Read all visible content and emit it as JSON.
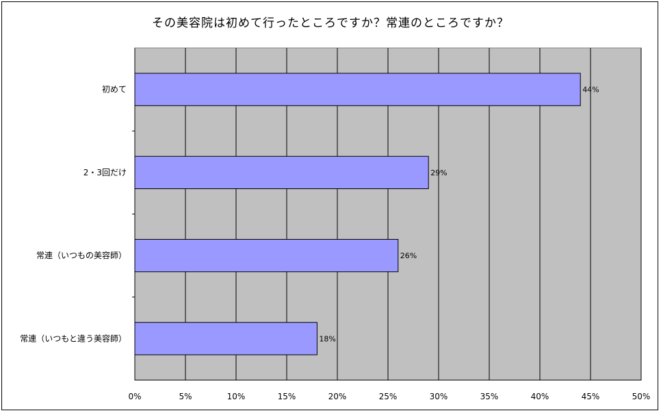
{
  "chart_data": {
    "type": "bar",
    "orientation": "horizontal",
    "title": "その美容院は初めて行ったところですか？常連のところですか？",
    "categories": [
      "初めて",
      "2・3回だけ",
      "常連（いつもの美容師）",
      "常連（いつもと違う美容師）"
    ],
    "values": [
      44,
      29,
      26,
      18
    ],
    "value_labels": [
      "44%",
      "29%",
      "26%",
      "18%"
    ],
    "xlim": [
      0,
      50
    ],
    "xticks": [
      "0%",
      "5%",
      "10%",
      "15%",
      "20%",
      "25%",
      "30%",
      "35%",
      "40%",
      "45%",
      "50%"
    ],
    "grid": true,
    "legend": "none",
    "colors": {
      "bar": "#9999ff",
      "plot_background": "#c0c0c0",
      "gridline": "#000000"
    }
  }
}
